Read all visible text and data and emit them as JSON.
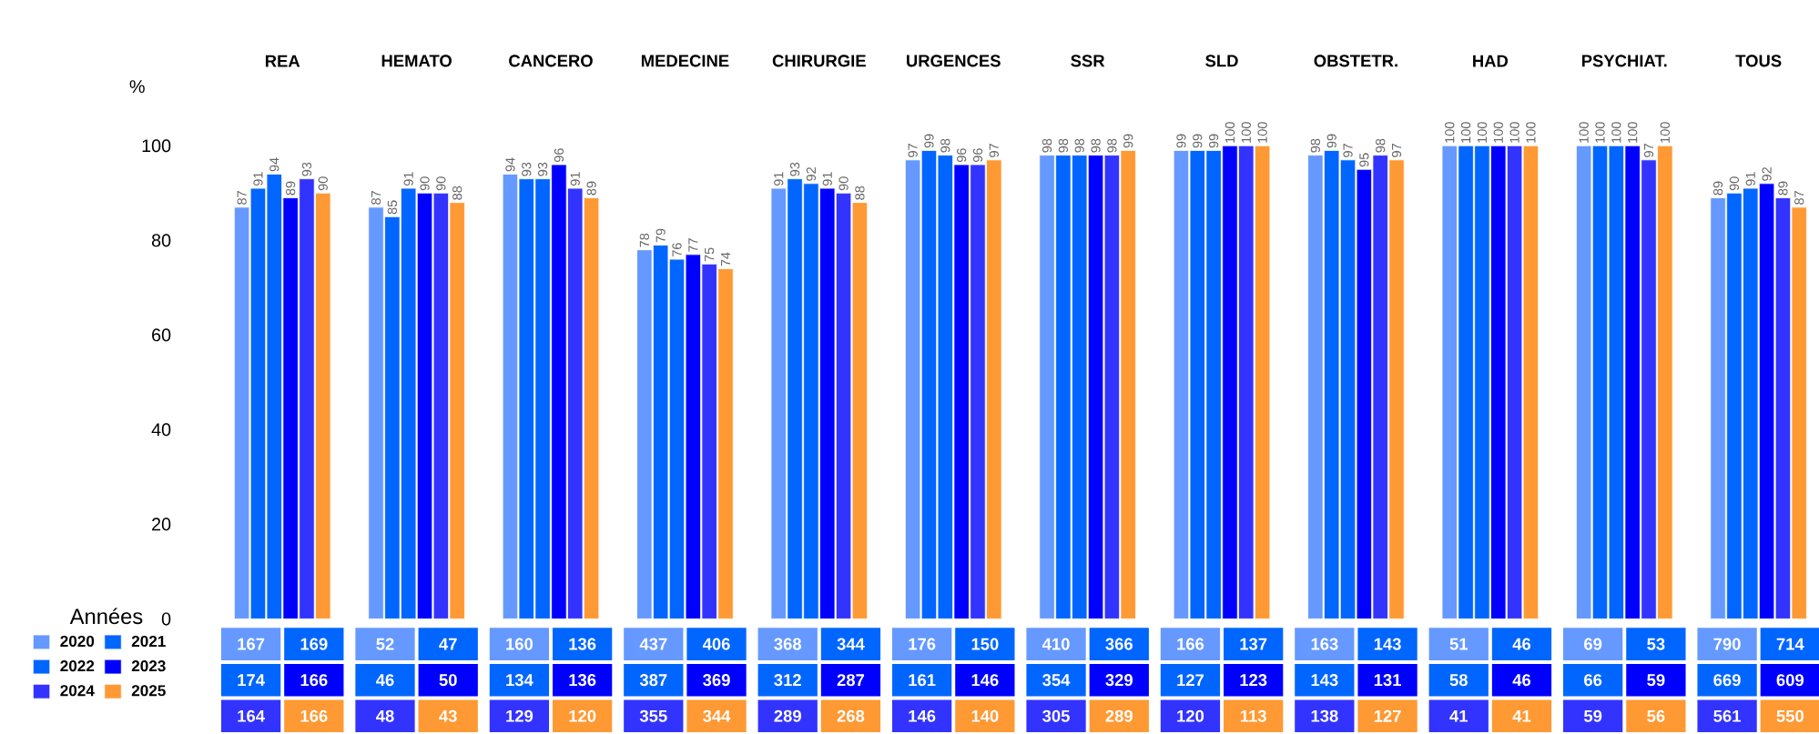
{
  "chart_data": [
    {
      "type": "bar",
      "ylabel": "%",
      "categories": [
        "REA",
        "HEMATO",
        "CANCERO",
        "MEDECINE",
        "CHIRURGIE",
        "URGENCES",
        "SSR",
        "SLD",
        "OBSTETR.",
        "HAD",
        "PSYCHIAT.",
        "TOUS"
      ],
      "series": [
        {
          "name": "2020",
          "color": "#6699ff",
          "values": [
            87,
            87,
            94,
            78,
            91,
            97,
            98,
            99,
            98,
            100,
            100,
            89
          ]
        },
        {
          "name": "2021",
          "color": "#0066ff",
          "values": [
            91,
            85,
            93,
            79,
            93,
            99,
            98,
            99,
            99,
            100,
            100,
            90
          ]
        },
        {
          "name": "2022",
          "color": "#0066ff",
          "values": [
            94,
            91,
            93,
            76,
            92,
            98,
            98,
            99,
            97,
            100,
            100,
            91
          ]
        },
        {
          "name": "2023",
          "color": "#0000ff",
          "values": [
            89,
            90,
            96,
            77,
            91,
            96,
            98,
            100,
            95,
            100,
            100,
            92
          ]
        },
        {
          "name": "2024",
          "color": "#3333ff",
          "values": [
            93,
            90,
            91,
            75,
            90,
            96,
            98,
            100,
            98,
            100,
            97,
            89
          ]
        },
        {
          "name": "2025",
          "color": "#ff9933",
          "values": [
            90,
            88,
            89,
            74,
            88,
            97,
            99,
            100,
            97,
            100,
            100,
            87
          ]
        }
      ],
      "legend_title": "Années",
      "legend": "bottom left",
      "ylim": [
        0,
        100
      ],
      "yticks": [
        0,
        20,
        40,
        60,
        80,
        100
      ],
      "data_labels": true
    },
    {
      "type": "other",
      "annotations": [
        "167",
        "169",
        "174",
        "166",
        "164",
        "166",
        "52",
        "47",
        "46",
        "50",
        "48",
        "43",
        "160",
        "136",
        "134",
        "136",
        "129",
        "120",
        "437",
        "406",
        "387",
        "369",
        "355",
        "344",
        "368",
        "344",
        "312",
        "287",
        "289",
        "268",
        "176",
        "150",
        "161",
        "146",
        "146",
        "140",
        "410",
        "366",
        "354",
        "329",
        "305",
        "289",
        "166",
        "137",
        "127",
        "123",
        "120",
        "113",
        "163",
        "143",
        "143",
        "131",
        "138",
        "127",
        "51",
        "46",
        "58",
        "46",
        "41",
        "41",
        "69",
        "53",
        "66",
        "59",
        "59",
        "56",
        "790",
        "714",
        "669",
        "609",
        "561",
        "550"
      ]
    }
  ]
}
